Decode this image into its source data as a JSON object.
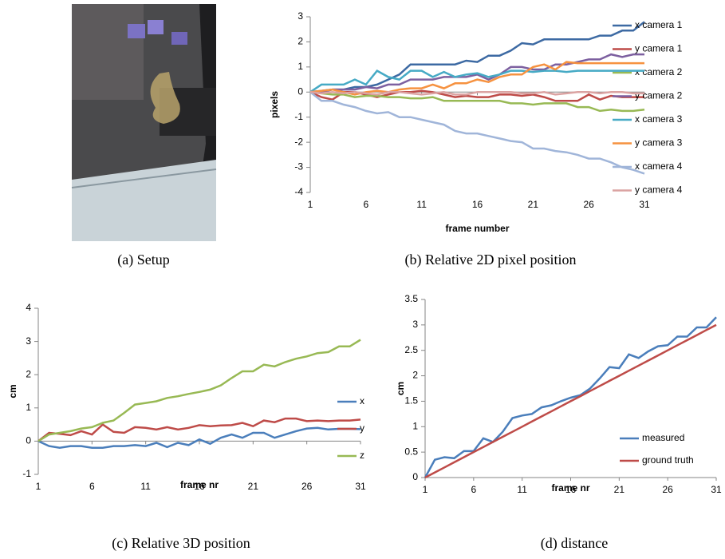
{
  "captions": [
    "(a) Setup",
    "(b) Relative 2D pixel position",
    "(c) Relative 3D position",
    "(d) distance"
  ],
  "chart_data": [
    {
      "type": "line",
      "xlabel": "frame number",
      "ylabel": "pixels",
      "x": [
        1,
        2,
        3,
        4,
        5,
        6,
        7,
        8,
        9,
        10,
        11,
        12,
        13,
        14,
        15,
        16,
        17,
        18,
        19,
        20,
        21,
        22,
        23,
        24,
        25,
        26,
        27,
        28,
        29,
        30,
        31
      ],
      "xlim": [
        1,
        31
      ],
      "xticks": [
        1,
        6,
        11,
        16,
        21,
        26,
        31
      ],
      "ylim": [
        -4,
        3
      ],
      "yticks": [
        -4,
        -3,
        -2,
        -1,
        0,
        1,
        2,
        3
      ],
      "grid": false,
      "legend": "right",
      "series": [
        {
          "name": "x camera 1",
          "color": "#3d6aa3",
          "values": [
            0,
            0.05,
            0.1,
            0.1,
            0.2,
            0.2,
            0.3,
            0.5,
            0.7,
            1.1,
            1.1,
            1.1,
            1.1,
            1.1,
            1.25,
            1.2,
            1.45,
            1.45,
            1.65,
            1.95,
            1.9,
            2.1,
            2.1,
            2.1,
            2.1,
            2.1,
            2.25,
            2.25,
            2.45,
            2.45,
            2.8
          ]
        },
        {
          "name": "y camera 1",
          "color": "#be4b48",
          "values": [
            0,
            -0.2,
            -0.3,
            0,
            0,
            -0.1,
            -0.2,
            -0.1,
            0,
            0,
            0.05,
            0,
            -0.1,
            -0.2,
            -0.15,
            -0.2,
            -0.2,
            -0.1,
            -0.1,
            -0.15,
            -0.1,
            -0.2,
            -0.35,
            -0.35,
            -0.35,
            -0.1,
            -0.3,
            -0.15,
            -0.2,
            -0.2,
            -0.2
          ]
        },
        {
          "name": "x camera 2",
          "color": "#98b954",
          "values": [
            0,
            -0.05,
            -0.1,
            -0.1,
            -0.2,
            -0.15,
            -0.15,
            -0.2,
            -0.2,
            -0.25,
            -0.25,
            -0.2,
            -0.35,
            -0.35,
            -0.35,
            -0.35,
            -0.35,
            -0.35,
            -0.45,
            -0.45,
            -0.5,
            -0.45,
            -0.45,
            -0.45,
            -0.6,
            -0.6,
            -0.75,
            -0.7,
            -0.75,
            -0.75,
            -0.7
          ]
        },
        {
          "name": "y camera 2",
          "color": "#7d60a0",
          "values": [
            0,
            0,
            0.1,
            0.1,
            0.1,
            0.2,
            0.15,
            0.3,
            0.3,
            0.5,
            0.5,
            0.5,
            0.6,
            0.6,
            0.6,
            0.7,
            0.5,
            0.7,
            1.0,
            1.0,
            0.9,
            0.9,
            1.1,
            1.1,
            1.2,
            1.3,
            1.3,
            1.5,
            1.4,
            1.5,
            1.5
          ]
        },
        {
          "name": "x camera 3",
          "color": "#46aac5",
          "values": [
            0,
            0.3,
            0.3,
            0.3,
            0.5,
            0.3,
            0.85,
            0.6,
            0.5,
            0.85,
            0.85,
            0.6,
            0.8,
            0.6,
            0.7,
            0.75,
            0.6,
            0.7,
            0.85,
            0.85,
            0.8,
            0.85,
            0.85,
            0.8,
            0.85,
            0.85,
            0.85,
            0.85,
            0.85,
            0.85,
            0.85
          ]
        },
        {
          "name": "y camera 3",
          "color": "#f69240",
          "values": [
            0,
            0.05,
            0.1,
            0,
            -0.1,
            0,
            0.05,
            0,
            0.1,
            0.15,
            0.15,
            0.3,
            0.15,
            0.35,
            0.35,
            0.5,
            0.4,
            0.6,
            0.7,
            0.7,
            1.0,
            1.1,
            0.9,
            1.2,
            1.15,
            1.15,
            1.15,
            1.15,
            1.15,
            1.15,
            1.15
          ]
        },
        {
          "name": "x camera 4",
          "color": "#a0b5d9",
          "values": [
            0,
            -0.35,
            -0.35,
            -0.5,
            -0.6,
            -0.75,
            -0.85,
            -0.8,
            -1.0,
            -1.0,
            -1.1,
            -1.2,
            -1.3,
            -1.55,
            -1.65,
            -1.65,
            -1.75,
            -1.85,
            -1.95,
            -2.0,
            -2.25,
            -2.25,
            -2.35,
            -2.4,
            -2.5,
            -2.65,
            -2.65,
            -2.8,
            -3.0,
            -3.1,
            -3.25
          ]
        },
        {
          "name": "y camera 4",
          "color": "#dba3a2",
          "values": [
            0,
            -0.05,
            0,
            -0.05,
            0,
            -0.05,
            -0.1,
            0,
            0,
            -0.05,
            -0.1,
            -0.05,
            0,
            -0.1,
            -0.1,
            0,
            0,
            0,
            0,
            -0.05,
            -0.05,
            0,
            -0.1,
            -0.05,
            0,
            0,
            -0.05,
            0,
            0,
            -0.05,
            -0.05
          ]
        }
      ]
    },
    {
      "type": "line",
      "xlabel": "frame nr",
      "ylabel": "cm",
      "x": [
        1,
        2,
        3,
        4,
        5,
        6,
        7,
        8,
        9,
        10,
        11,
        12,
        13,
        14,
        15,
        16,
        17,
        18,
        19,
        20,
        21,
        22,
        23,
        24,
        25,
        26,
        27,
        28,
        29,
        30,
        31
      ],
      "xlim": [
        1,
        31
      ],
      "xticks": [
        1,
        6,
        11,
        16,
        21,
        26,
        31
      ],
      "ylim": [
        -1,
        4
      ],
      "yticks": [
        -1,
        0,
        1,
        2,
        3,
        4
      ],
      "grid": false,
      "legend": "right",
      "series": [
        {
          "name": "x",
          "color": "#4a7ebb",
          "values": [
            0,
            -0.15,
            -0.2,
            -0.15,
            -0.15,
            -0.2,
            -0.2,
            -0.15,
            -0.15,
            -0.12,
            -0.15,
            -0.05,
            -0.18,
            -0.05,
            -0.12,
            0.05,
            -0.08,
            0.1,
            0.2,
            0.1,
            0.25,
            0.25,
            0.1,
            0.2,
            0.3,
            0.38,
            0.4,
            0.35,
            0.37,
            0.37,
            0.36
          ]
        },
        {
          "name": "y",
          "color": "#be4b48",
          "values": [
            0,
            0.25,
            0.22,
            0.18,
            0.3,
            0.2,
            0.5,
            0.28,
            0.25,
            0.42,
            0.4,
            0.35,
            0.42,
            0.35,
            0.4,
            0.48,
            0.45,
            0.47,
            0.48,
            0.55,
            0.45,
            0.62,
            0.57,
            0.68,
            0.68,
            0.6,
            0.62,
            0.6,
            0.62,
            0.62,
            0.65
          ]
        },
        {
          "name": "z",
          "color": "#98b954",
          "values": [
            0,
            0.2,
            0.25,
            0.3,
            0.38,
            0.42,
            0.55,
            0.62,
            0.85,
            1.1,
            1.15,
            1.2,
            1.3,
            1.35,
            1.42,
            1.48,
            1.55,
            1.68,
            1.9,
            2.1,
            2.1,
            2.3,
            2.25,
            2.38,
            2.48,
            2.55,
            2.65,
            2.68,
            2.85,
            2.85,
            3.05
          ]
        }
      ]
    },
    {
      "type": "line",
      "xlabel": "frame nr",
      "ylabel": "cm",
      "x": [
        1,
        2,
        3,
        4,
        5,
        6,
        7,
        8,
        9,
        10,
        11,
        12,
        13,
        14,
        15,
        16,
        17,
        18,
        19,
        20,
        21,
        22,
        23,
        24,
        25,
        26,
        27,
        28,
        29,
        30,
        31
      ],
      "xlim": [
        1,
        31
      ],
      "xticks": [
        1,
        6,
        11,
        16,
        21,
        26,
        31
      ],
      "ylim": [
        0,
        3.5
      ],
      "yticks": [
        0,
        0.5,
        1,
        1.5,
        2,
        2.5,
        3,
        3.5
      ],
      "grid": false,
      "legend": "lower right",
      "series": [
        {
          "name": "measured",
          "color": "#4a7ebb",
          "values": [
            0,
            0.35,
            0.4,
            0.38,
            0.52,
            0.52,
            0.77,
            0.7,
            0.9,
            1.17,
            1.22,
            1.25,
            1.38,
            1.42,
            1.5,
            1.57,
            1.62,
            1.75,
            1.95,
            2.17,
            2.15,
            2.42,
            2.35,
            2.48,
            2.58,
            2.6,
            2.77,
            2.77,
            2.95,
            2.95,
            3.15
          ]
        },
        {
          "name": "ground truth",
          "color": "#be4b48",
          "values": [
            0,
            0.1,
            0.2,
            0.3,
            0.4,
            0.5,
            0.6,
            0.7,
            0.8,
            0.9,
            1.0,
            1.1,
            1.2,
            1.3,
            1.4,
            1.5,
            1.6,
            1.7,
            1.8,
            1.9,
            2.0,
            2.1,
            2.2,
            2.3,
            2.4,
            2.5,
            2.6,
            2.7,
            2.8,
            2.9,
            3.0
          ]
        }
      ]
    }
  ]
}
